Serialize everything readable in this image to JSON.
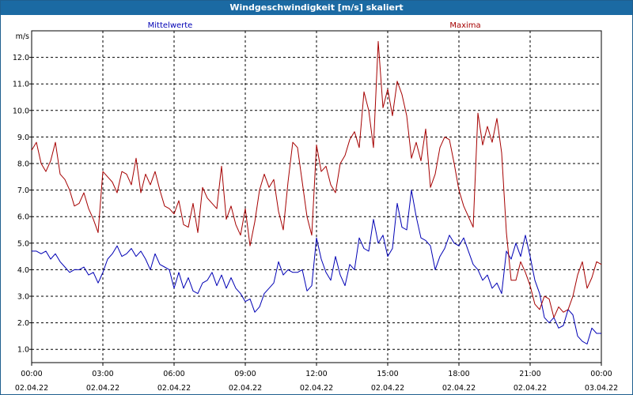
{
  "window": {
    "title": "Windgeschwindigkeit [m/s] skaliert"
  },
  "colors": {
    "titlebar": "#1b6aa3",
    "mean": "#0000b4",
    "max": "#a50000",
    "grid": "#000000"
  },
  "chart_data": {
    "type": "line",
    "title": "Windgeschwindigkeit [m/s] skaliert",
    "ylabel": "m/s",
    "xlabel": "",
    "grid": true,
    "legend_placement": "top",
    "ylim": [
      0.5,
      13.0
    ],
    "yticks": [
      "1.0",
      "2.0",
      "3.0",
      "4.0",
      "5.0",
      "6.0",
      "7.0",
      "8.0",
      "9.0",
      "10.0",
      "11.0",
      "12.0"
    ],
    "xlim_hours": [
      0,
      24
    ],
    "xticks": [
      {
        "hour": 0,
        "time": "00:00",
        "date": "02.04.22"
      },
      {
        "hour": 3,
        "time": "03:00",
        "date": "02.04.22"
      },
      {
        "hour": 6,
        "time": "06:00",
        "date": "02.04.22"
      },
      {
        "hour": 9,
        "time": "09:00",
        "date": "02.04.22"
      },
      {
        "hour": 12,
        "time": "12:00",
        "date": "02.04.22"
      },
      {
        "hour": 15,
        "time": "15:00",
        "date": "02.04.22"
      },
      {
        "hour": 18,
        "time": "18:00",
        "date": "02.04.22"
      },
      {
        "hour": 21,
        "time": "21:00",
        "date": "02.04.22"
      },
      {
        "hour": 24,
        "time": "00:00",
        "date": "03.04.22"
      }
    ],
    "series": [
      {
        "name": "Mittelwerte",
        "color": "#0000b4",
        "x": [
          0.0,
          0.2,
          0.4,
          0.6,
          0.8,
          1.0,
          1.2,
          1.4,
          1.6,
          1.8,
          2.0,
          2.2,
          2.4,
          2.6,
          2.8,
          3.0,
          3.2,
          3.4,
          3.6,
          3.8,
          4.0,
          4.2,
          4.4,
          4.6,
          4.8,
          5.0,
          5.2,
          5.4,
          5.6,
          5.8,
          6.0,
          6.2,
          6.4,
          6.6,
          6.8,
          7.0,
          7.2,
          7.4,
          7.6,
          7.8,
          8.0,
          8.2,
          8.4,
          8.6,
          8.8,
          9.0,
          9.2,
          9.4,
          9.6,
          9.8,
          10.0,
          10.2,
          10.4,
          10.6,
          10.8,
          11.0,
          11.2,
          11.4,
          11.6,
          11.8,
          12.0,
          12.2,
          12.4,
          12.6,
          12.8,
          13.0,
          13.2,
          13.4,
          13.6,
          13.8,
          14.0,
          14.2,
          14.4,
          14.6,
          14.8,
          15.0,
          15.2,
          15.4,
          15.6,
          15.8,
          16.0,
          16.2,
          16.4,
          16.6,
          16.8,
          17.0,
          17.2,
          17.4,
          17.6,
          17.8,
          18.0,
          18.2,
          18.4,
          18.6,
          18.8,
          19.0,
          19.2,
          19.4,
          19.6,
          19.8,
          20.0,
          20.2,
          20.4,
          20.6,
          20.8,
          21.0,
          21.2,
          21.4,
          21.6,
          21.8,
          22.0,
          22.2,
          22.4,
          22.6,
          22.8,
          23.0,
          23.2,
          23.4,
          23.6,
          23.8,
          24.0
        ],
        "y": [
          4.7,
          4.7,
          4.6,
          4.7,
          4.4,
          4.6,
          4.3,
          4.1,
          3.9,
          4.0,
          4.0,
          4.1,
          3.8,
          3.9,
          3.5,
          3.9,
          4.4,
          4.6,
          4.9,
          4.5,
          4.6,
          4.8,
          4.5,
          4.7,
          4.4,
          4.0,
          4.6,
          4.2,
          4.1,
          4.0,
          3.3,
          3.9,
          3.3,
          3.7,
          3.2,
          3.1,
          3.5,
          3.6,
          3.9,
          3.4,
          3.8,
          3.3,
          3.7,
          3.3,
          3.1,
          2.8,
          2.9,
          2.4,
          2.6,
          3.1,
          3.3,
          3.5,
          4.3,
          3.8,
          4.0,
          3.9,
          3.9,
          4.0,
          3.2,
          3.4,
          5.2,
          4.4,
          3.9,
          3.6,
          4.5,
          3.8,
          3.4,
          4.2,
          4.0,
          5.2,
          4.8,
          4.7,
          5.9,
          5.0,
          5.3,
          4.5,
          4.8,
          6.5,
          5.6,
          5.5,
          7.0,
          6.0,
          5.2,
          5.1,
          4.9,
          4.0,
          4.5,
          4.8,
          5.3,
          5.0,
          4.9,
          5.2,
          4.7,
          4.2,
          4.0,
          3.6,
          3.8,
          3.3,
          3.5,
          3.1,
          4.7,
          4.4,
          5.0,
          4.5,
          5.3,
          4.5,
          3.6,
          3.1,
          2.2,
          2.0,
          2.2,
          1.8,
          1.9,
          2.5,
          2.3,
          1.5,
          1.3,
          1.2,
          1.8,
          1.6,
          1.6
        ],
        "y_tail_note": ""
      },
      {
        "name": "Maxima",
        "color": "#a50000",
        "x": [
          0.0,
          0.2,
          0.4,
          0.6,
          0.8,
          1.0,
          1.2,
          1.4,
          1.6,
          1.8,
          2.0,
          2.2,
          2.4,
          2.6,
          2.8,
          3.0,
          3.2,
          3.4,
          3.6,
          3.8,
          4.0,
          4.2,
          4.4,
          4.6,
          4.8,
          5.0,
          5.2,
          5.4,
          5.6,
          5.8,
          6.0,
          6.2,
          6.4,
          6.6,
          6.8,
          7.0,
          7.2,
          7.4,
          7.6,
          7.8,
          8.0,
          8.2,
          8.4,
          8.6,
          8.8,
          9.0,
          9.2,
          9.4,
          9.6,
          9.8,
          10.0,
          10.2,
          10.4,
          10.6,
          10.8,
          11.0,
          11.2,
          11.4,
          11.6,
          11.8,
          12.0,
          12.2,
          12.4,
          12.6,
          12.8,
          13.0,
          13.2,
          13.4,
          13.6,
          13.8,
          14.0,
          14.2,
          14.4,
          14.6,
          14.8,
          15.0,
          15.2,
          15.4,
          15.6,
          15.8,
          16.0,
          16.2,
          16.4,
          16.6,
          16.8,
          17.0,
          17.2,
          17.4,
          17.6,
          17.8,
          18.0,
          18.2,
          18.4,
          18.6,
          18.8,
          19.0,
          19.2,
          19.4,
          19.6,
          19.8,
          20.0,
          20.2,
          20.4,
          20.6,
          20.8,
          21.0,
          21.2,
          21.4,
          21.6,
          21.8,
          22.0,
          22.2,
          22.4,
          22.6,
          22.8,
          23.0,
          23.2,
          23.4,
          23.6,
          23.8,
          24.0
        ],
        "y": [
          8.5,
          8.8,
          8.0,
          7.7,
          8.1,
          8.8,
          7.6,
          7.4,
          7.0,
          6.4,
          6.5,
          6.9,
          6.3,
          5.9,
          5.4,
          7.7,
          7.5,
          7.3,
          6.9,
          7.7,
          7.6,
          7.2,
          8.2,
          6.9,
          7.6,
          7.2,
          7.7,
          7.0,
          6.4,
          6.3,
          6.1,
          6.6,
          5.7,
          5.6,
          6.5,
          5.4,
          7.1,
          6.7,
          6.5,
          6.3,
          7.9,
          5.9,
          6.4,
          5.7,
          5.3,
          6.3,
          4.9,
          5.8,
          7.0,
          7.6,
          7.1,
          7.4,
          6.2,
          5.5,
          7.3,
          8.8,
          8.6,
          7.3,
          6.0,
          5.3,
          8.7,
          7.7,
          7.9,
          7.2,
          6.9,
          8.0,
          8.3,
          8.9,
          9.2,
          8.6,
          10.7,
          10.0,
          8.6,
          12.6,
          10.1,
          10.8,
          9.8,
          11.1,
          10.6,
          9.8,
          8.2,
          8.8,
          8.1,
          9.3,
          7.1,
          7.6,
          8.6,
          9.0,
          8.9,
          8.0,
          7.0,
          6.4,
          6.0,
          5.6,
          9.9,
          8.7,
          9.4,
          8.8,
          9.7,
          8.4,
          5.4,
          3.6,
          3.6,
          4.3,
          3.9,
          3.4,
          2.7,
          2.5,
          3.0,
          2.9,
          2.2,
          2.6,
          2.4,
          2.5,
          3.0,
          3.8,
          4.3,
          3.3,
          3.7,
          4.3,
          4.2
        ],
        "y_tail_note": ""
      }
    ]
  }
}
